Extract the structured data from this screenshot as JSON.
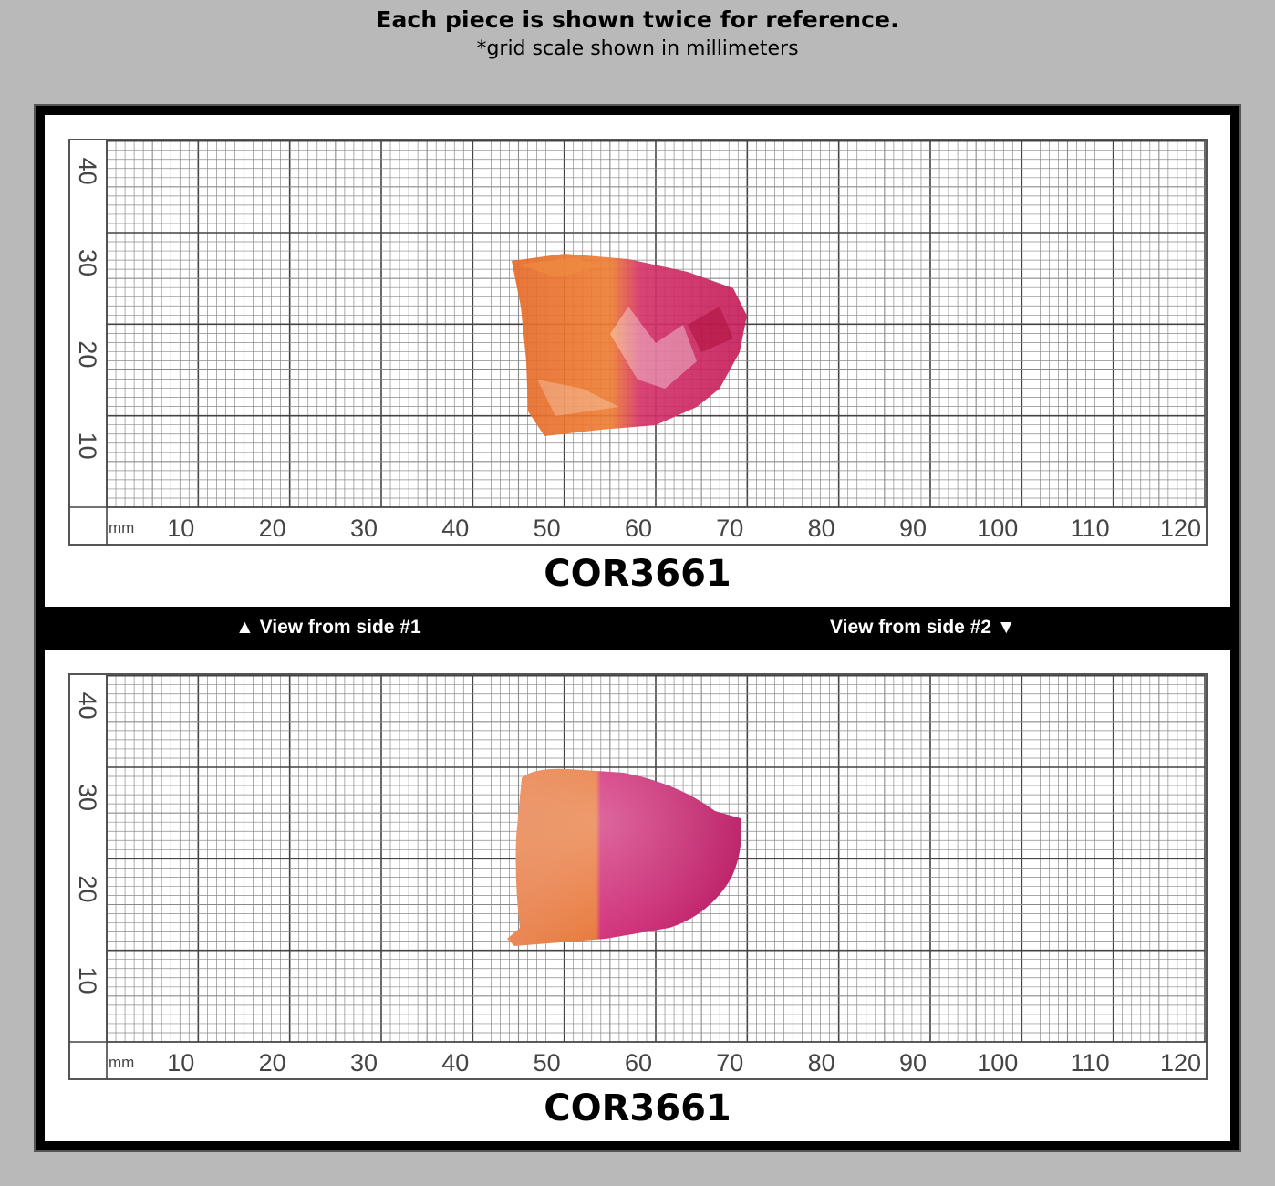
{
  "header": {
    "title": "Each piece is shown twice for reference.",
    "subtitle": "*grid scale shown in millimeters"
  },
  "panels": [
    {
      "label": "COR3661"
    },
    {
      "label": "COR3661"
    }
  ],
  "caption_side1": "▲ View from side #1",
  "caption_side2": "View from side #2 ▼",
  "scale": {
    "unit": "mm",
    "x_ticks": [
      "10",
      "20",
      "30",
      "40",
      "50",
      "60",
      "70",
      "80",
      "90",
      "100",
      "110",
      "120"
    ],
    "y_ticks": [
      "10",
      "20",
      "30",
      "40"
    ]
  },
  "colors": {
    "background": "#b9b9b9",
    "frame": "#000000",
    "grid_line": "#555555",
    "stone_orange": "#e8742e",
    "stone_pink": "#d0226a"
  }
}
